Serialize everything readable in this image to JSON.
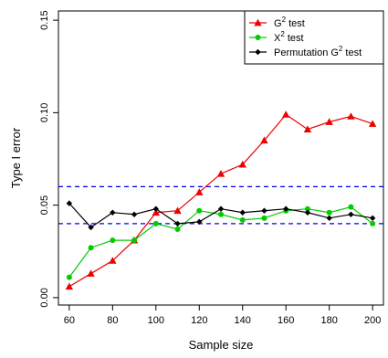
{
  "chart_data": {
    "type": "line",
    "xlabel": "Sample size",
    "ylabel": "Type  I error",
    "xlim": [
      55,
      205
    ],
    "ylim": [
      -0.004,
      0.155
    ],
    "x_ticks": [
      60,
      80,
      100,
      120,
      140,
      160,
      180,
      200
    ],
    "y_ticks": [
      0.0,
      0.05,
      0.1,
      0.15
    ],
    "y_tick_labels": [
      "0.00",
      "0.05",
      "0.10",
      "0.15"
    ],
    "reference_lines": [
      {
        "y": 0.06,
        "color": "#0000ee",
        "style": "dashed"
      },
      {
        "y": 0.04,
        "color": "#0000ee",
        "style": "dashed"
      }
    ],
    "legend_position": "top-right",
    "x": [
      60,
      70,
      80,
      90,
      100,
      110,
      120,
      130,
      140,
      150,
      160,
      170,
      180,
      190,
      200
    ],
    "series": [
      {
        "key": "g2",
        "name": "G² test",
        "legend_base": "G",
        "legend_sup": "2",
        "legend_rest": " test",
        "color": "#ee0000",
        "marker": "triangle",
        "values": [
          0.006,
          0.013,
          0.02,
          0.031,
          0.046,
          0.047,
          0.057,
          0.067,
          0.072,
          0.085,
          0.099,
          0.091,
          0.095,
          0.098,
          0.094
        ]
      },
      {
        "key": "x2",
        "name": "X² test",
        "legend_base": "X",
        "legend_sup": "2",
        "legend_rest": " test",
        "color": "#00cc00",
        "marker": "circle",
        "values": [
          0.011,
          0.027,
          0.031,
          0.031,
          0.04,
          0.037,
          0.047,
          0.045,
          0.042,
          0.043,
          0.047,
          0.048,
          0.046,
          0.049,
          0.04
        ]
      },
      {
        "key": "perm",
        "name": "Permutation G² test",
        "legend_base": "Permutation G",
        "legend_sup": "2",
        "legend_rest": " test",
        "color": "#000000",
        "marker": "diamond",
        "values": [
          0.051,
          0.038,
          0.046,
          0.045,
          0.048,
          0.04,
          0.041,
          0.048,
          0.046,
          0.047,
          0.048,
          0.046,
          0.043,
          0.045,
          0.043
        ]
      }
    ]
  }
}
